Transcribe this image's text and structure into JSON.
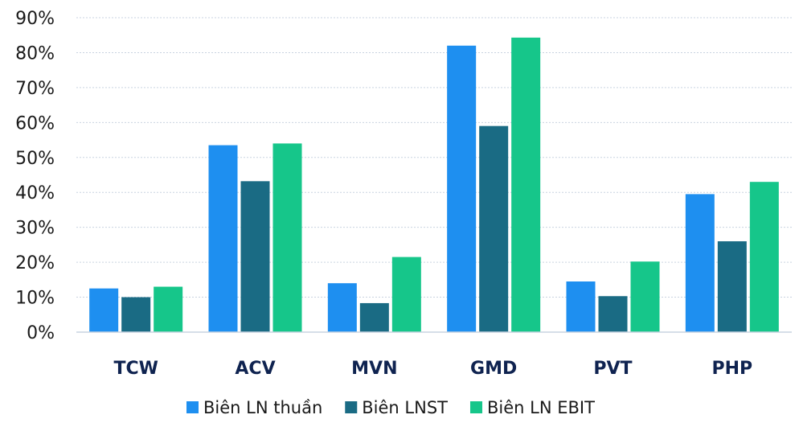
{
  "chart_data": {
    "type": "bar",
    "categories": [
      "TCW",
      "ACV",
      "MVN",
      "GMD",
      "PVT",
      "PHP"
    ],
    "series": [
      {
        "name": "Biên LN thuần",
        "color": "#1e8ff0",
        "values": [
          12.5,
          53.5,
          14.0,
          82.0,
          14.5,
          39.5
        ]
      },
      {
        "name": "Biên LNST",
        "color": "#1a6b84",
        "values": [
          10.0,
          43.2,
          8.3,
          59.0,
          10.3,
          26.0
        ]
      },
      {
        "name": "Biên LN EBIT",
        "color": "#16c68a",
        "values": [
          13.0,
          54.0,
          21.5,
          84.3,
          20.2,
          43.0
        ]
      }
    ],
    "ylim": [
      0,
      90
    ],
    "yticks": [
      "0%",
      "10%",
      "20%",
      "30%",
      "40%",
      "50%",
      "60%",
      "70%",
      "80%",
      "90%"
    ],
    "grid": true,
    "legend_position": "bottom"
  }
}
